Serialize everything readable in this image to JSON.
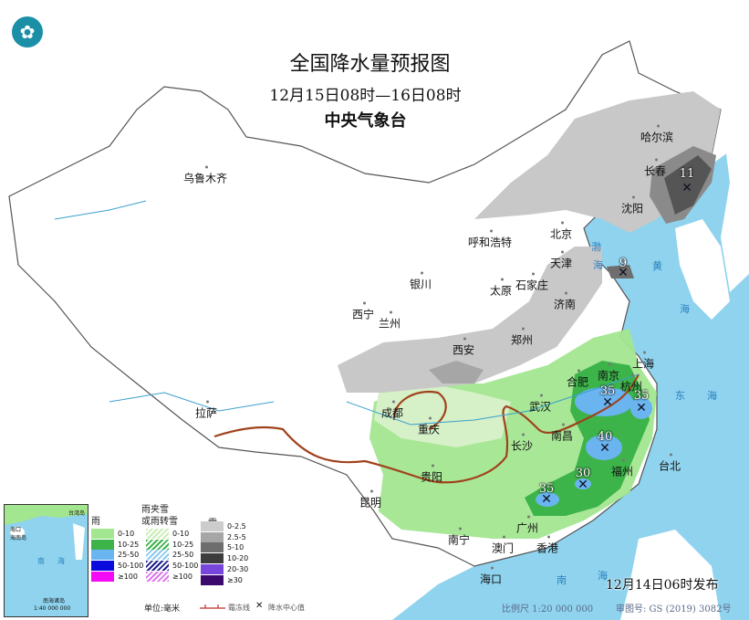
{
  "header": {
    "title": "全国降水量预报图",
    "period": "12月15日08时—16日08时",
    "agency": "中央气象台",
    "logo_icon": "cma-logo"
  },
  "cities": [
    "乌鲁木齐",
    "哈尔滨",
    "长春",
    "沈阳",
    "北京",
    "天津",
    "呼和浩特",
    "石家庄",
    "太原",
    "济南",
    "银川",
    "西宁",
    "兰州",
    "西安",
    "郑州",
    "合肥",
    "南京",
    "上海",
    "杭州",
    "武汉",
    "成都",
    "重庆",
    "长沙",
    "南昌",
    "拉萨",
    "贵阳",
    "昆明",
    "福州",
    "台北",
    "南宁",
    "广州",
    "澳门",
    "香港",
    "海口"
  ],
  "precip_centers": [
    "11",
    "9",
    "35",
    "35",
    "40",
    "30",
    "35"
  ],
  "seas": [
    "渤",
    "海",
    "黄",
    "海",
    "东",
    "海",
    "南",
    "海"
  ],
  "inset": {
    "labels": [
      "台湾岛",
      "海口",
      "海南岛",
      "南",
      "海",
      "南海诸岛"
    ],
    "scale": "1:40 000 000"
  },
  "legend": {
    "rain": {
      "title": "雨",
      "items": [
        "0-10",
        "10-25",
        "25-50",
        "50-100",
        "≥100"
      ],
      "colors": [
        "#a3e690",
        "#3cb44a",
        "#6ab4f0",
        "#0a0adc",
        "#f50af5"
      ]
    },
    "mixed": {
      "title": "雨夹雪或雨转雪",
      "title_l1": "雨夹雪",
      "title_l2": "或雨转雪",
      "items": [
        "0-10",
        "10-25",
        "25-50",
        "50-100",
        "≥100"
      ],
      "colors": [
        "#c8ecb4",
        "#3cb44a",
        "#8cc8f0",
        "#1e1e8c",
        "#dc78e6"
      ]
    },
    "snow": {
      "title": "雪",
      "items": [
        "0-2.5",
        "2.5-5",
        "5-10",
        "10-20",
        "20-30",
        "≥30"
      ],
      "colors": [
        "#cccccc",
        "#a6a6a6",
        "#6e6e6e",
        "#3c3c3c",
        "#7846dc",
        "#3c0a6e"
      ]
    },
    "unit": "单位:毫米",
    "front": "霜冻线",
    "center": "降水中心值"
  },
  "footer": {
    "issued": "12月14日06时发布",
    "scale": "比例尺 1:20 000 000",
    "map_no": "审图号: GS (2019) 3082号"
  }
}
